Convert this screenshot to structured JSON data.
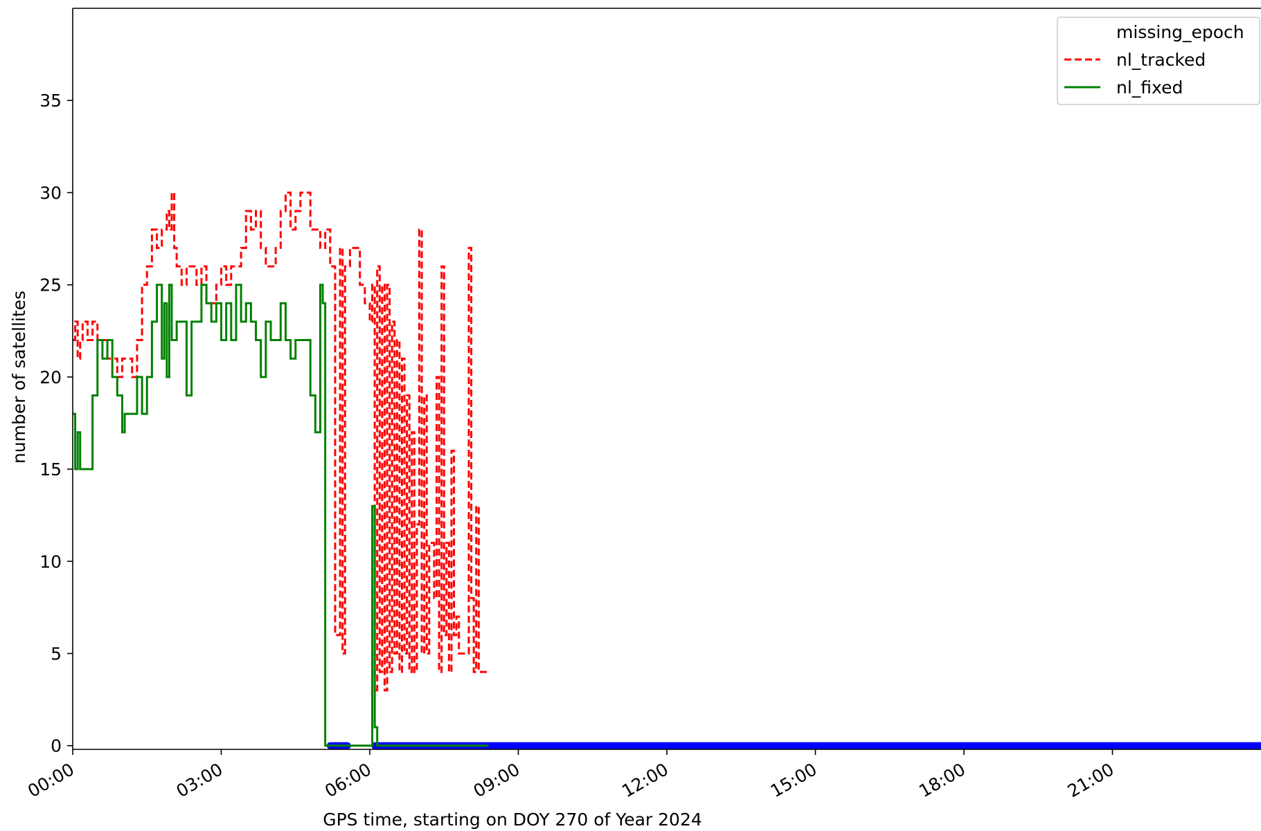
{
  "chart_data": {
    "type": "line",
    "title": "",
    "xlabel": "GPS time, starting on DOY 270 of Year 2024",
    "ylabel": "number of satellites",
    "x_unit": "hours",
    "xlim": [
      0,
      24
    ],
    "ylim": [
      -0.2,
      40
    ],
    "x_ticks": [
      {
        "value": 0,
        "label": "00:00"
      },
      {
        "value": 3,
        "label": "03:00"
      },
      {
        "value": 6,
        "label": "06:00"
      },
      {
        "value": 9,
        "label": "09:00"
      },
      {
        "value": 12,
        "label": "12:00"
      },
      {
        "value": 15,
        "label": "15:00"
      },
      {
        "value": 18,
        "label": "18:00"
      },
      {
        "value": 21,
        "label": "21:00"
      }
    ],
    "y_ticks": [
      {
        "value": 0,
        "label": "0"
      },
      {
        "value": 5,
        "label": "5"
      },
      {
        "value": 10,
        "label": "10"
      },
      {
        "value": 15,
        "label": "15"
      },
      {
        "value": 20,
        "label": "20"
      },
      {
        "value": 25,
        "label": "25"
      },
      {
        "value": 30,
        "label": "30"
      },
      {
        "value": 35,
        "label": "35"
      }
    ],
    "grid": false,
    "legend_position": "top-right",
    "series": [
      {
        "name": "missing_epoch",
        "style": "markers",
        "color": "#0000ff",
        "segments": [
          [
            5.2,
            5.55
          ],
          [
            6.1,
            24
          ]
        ],
        "y": 0
      },
      {
        "name": "nl_tracked",
        "style": "dashed",
        "color": "#ff0000",
        "x": [
          0.0,
          0.05,
          0.1,
          0.15,
          0.2,
          0.3,
          0.4,
          0.5,
          0.6,
          0.7,
          0.8,
          0.9,
          1.0,
          1.1,
          1.2,
          1.3,
          1.4,
          1.5,
          1.6,
          1.7,
          1.8,
          1.9,
          1.95,
          2.0,
          2.05,
          2.1,
          2.2,
          2.3,
          2.4,
          2.5,
          2.6,
          2.7,
          2.8,
          2.9,
          3.0,
          3.1,
          3.2,
          3.3,
          3.4,
          3.5,
          3.6,
          3.7,
          3.8,
          3.9,
          4.0,
          4.1,
          4.2,
          4.3,
          4.4,
          4.5,
          4.6,
          4.7,
          4.8,
          4.9,
          5.0,
          5.1,
          5.2,
          5.3,
          5.4,
          5.45,
          5.5,
          5.55,
          5.6,
          5.7,
          5.8,
          5.9,
          6.0,
          6.05,
          6.1,
          6.15,
          6.2,
          6.25,
          6.3,
          6.35,
          6.4,
          6.45,
          6.5,
          6.55,
          6.6,
          6.65,
          6.7,
          6.75,
          6.8,
          6.85,
          6.9,
          6.95,
          7.0,
          7.05,
          7.1,
          7.15,
          7.2,
          7.3,
          7.35,
          7.4,
          7.45,
          7.5,
          7.55,
          7.6,
          7.65,
          7.7,
          7.75,
          7.8,
          7.85,
          7.9,
          7.95,
          8.0,
          8.05,
          8.1,
          8.15,
          8.2,
          8.25,
          8.3,
          8.35,
          8.4
        ],
        "y": [
          22,
          23,
          21,
          22,
          23,
          22,
          23,
          22,
          22,
          21,
          21,
          20,
          21,
          21,
          20,
          22,
          25,
          26,
          28,
          27,
          28,
          29,
          28,
          30,
          27,
          26,
          25,
          26,
          26,
          25,
          26,
          24,
          24,
          25,
          26,
          25,
          26,
          26,
          27,
          29,
          28,
          29,
          27,
          26,
          26,
          27,
          29,
          30,
          28,
          29,
          30,
          30,
          28,
          28,
          27,
          28,
          26,
          6,
          27,
          5,
          26,
          26,
          27,
          27,
          25,
          24,
          23,
          25,
          3,
          26,
          4,
          25,
          3,
          25,
          4,
          23,
          5,
          22,
          4,
          21,
          5,
          19,
          4,
          17,
          4,
          12,
          28,
          5,
          19,
          5,
          11,
          8,
          20,
          4,
          26,
          6,
          11,
          4,
          16,
          6,
          7,
          5,
          5,
          5,
          5,
          27,
          8,
          4,
          13,
          4,
          4,
          4,
          4,
          4
        ],
        "x_note": ""
      },
      {
        "name": "nl_fixed",
        "style": "solid",
        "color": "#008000",
        "x": [
          0.0,
          0.05,
          0.1,
          0.15,
          0.3,
          0.4,
          0.5,
          0.6,
          0.7,
          0.8,
          0.9,
          1.0,
          1.05,
          1.1,
          1.2,
          1.3,
          1.4,
          1.5,
          1.6,
          1.7,
          1.8,
          1.85,
          1.9,
          1.95,
          2.0,
          2.1,
          2.2,
          2.3,
          2.4,
          2.5,
          2.6,
          2.7,
          2.8,
          2.9,
          3.0,
          3.1,
          3.2,
          3.3,
          3.4,
          3.5,
          3.6,
          3.7,
          3.8,
          3.9,
          4.0,
          4.1,
          4.2,
          4.3,
          4.4,
          4.5,
          4.6,
          4.7,
          4.8,
          4.9,
          5.0,
          5.05,
          5.1,
          5.2,
          5.3,
          6.0,
          6.05,
          6.1,
          6.15,
          8.4
        ],
        "y": [
          18,
          15,
          17,
          15,
          15,
          19,
          22,
          21,
          22,
          20,
          19,
          17,
          18,
          18,
          18,
          20,
          18,
          20,
          23,
          25,
          21,
          24,
          20,
          25,
          22,
          23,
          23,
          19,
          23,
          23,
          25,
          24,
          23,
          24,
          22,
          24,
          22,
          25,
          23,
          24,
          23,
          22,
          20,
          23,
          22,
          22,
          24,
          22,
          21,
          22,
          22,
          22,
          19,
          17,
          25,
          24,
          0,
          0,
          0,
          0,
          13,
          1,
          0,
          0
        ]
      }
    ]
  }
}
